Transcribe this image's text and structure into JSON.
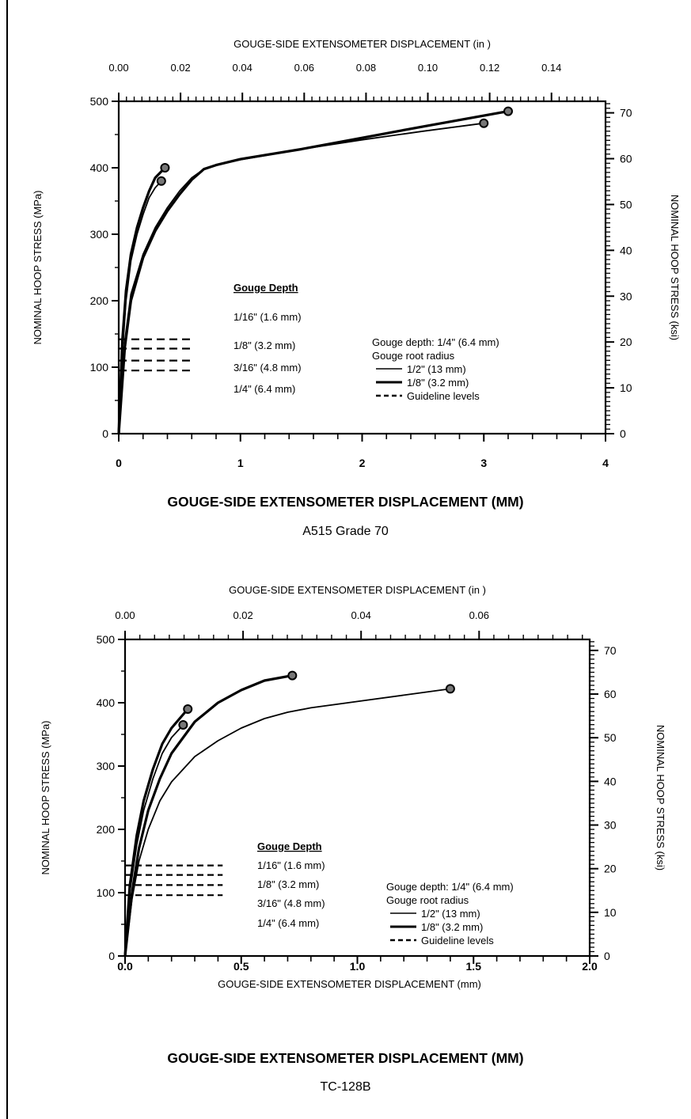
{
  "chart_data": [
    {
      "type": "line",
      "xlabel_top": "GOUGE-SIDE EXTENSOMETER DISPLACEMENT (in )",
      "ylabel_left": "NOMINAL HOOP STRESS (MPa)",
      "ylabel_right": "NOMINAL HOOP STRESS (ksi)",
      "x_ticks": [
        "0",
        "1",
        "2",
        "3",
        "4"
      ],
      "x_top_ticks": [
        "0.00",
        "0.02",
        "0.04",
        "0.06",
        "0.08",
        "0.10",
        "0.12",
        "0.14"
      ],
      "y_ticks": [
        "0",
        "100",
        "200",
        "300",
        "400",
        "500"
      ],
      "y_right_ticks": [
        "0",
        "10",
        "20",
        "30",
        "40",
        "50",
        "60",
        "70"
      ],
      "xlim": [
        0,
        4
      ],
      "ylim": [
        0,
        500
      ],
      "x_top_lim": [
        0,
        0.15748
      ],
      "y_right_lim": [
        0,
        72.52
      ],
      "series": [
        {
          "name": "1/2\" (13 mm)",
          "style": "thin",
          "x": [
            0,
            0.03,
            0.06,
            0.1,
            0.15,
            0.2,
            0.25,
            0.3,
            0.35
          ],
          "y": [
            0,
            120,
            200,
            260,
            300,
            330,
            355,
            370,
            380
          ],
          "end_marker": true
        },
        {
          "name": "1/8\" (3.2 mm)",
          "style": "thick",
          "x": [
            0,
            0.03,
            0.06,
            0.1,
            0.15,
            0.2,
            0.25,
            0.3,
            0.38
          ],
          "y": [
            0,
            140,
            215,
            270,
            310,
            340,
            365,
            385,
            400
          ],
          "end_marker": true
        },
        {
          "name": "1/2\" (13 mm)",
          "style": "thin",
          "x": [
            0,
            0.05,
            0.1,
            0.2,
            0.3,
            0.4,
            0.5,
            0.6,
            0.7,
            0.8,
            1.0,
            1.5,
            2.0,
            2.5,
            3.0
          ],
          "y": [
            0,
            140,
            210,
            270,
            310,
            340,
            365,
            385,
            398,
            404,
            412,
            428,
            442,
            455,
            467
          ],
          "end_marker": true
        },
        {
          "name": "1/8\" (3.2 mm)",
          "style": "thick",
          "x": [
            0,
            0.05,
            0.1,
            0.2,
            0.3,
            0.4,
            0.5,
            0.6,
            0.7,
            0.8,
            1.0,
            1.5,
            2.0,
            2.5,
            3.2
          ],
          "y": [
            0,
            130,
            200,
            265,
            305,
            335,
            360,
            382,
            398,
            404,
            413,
            428,
            445,
            462,
            485
          ],
          "end_marker": true
        }
      ],
      "guideline_levels": [
        142,
        128,
        110,
        95
      ],
      "guideline_xmax": 0.6,
      "gouge_depth_title": "Gouge Depth",
      "gouge_depth_labels": [
        "1/16\" (1.6 mm)",
        "1/8\" (3.2 mm)",
        "3/16\" (4.8 mm)",
        "1/4\" (6.4 mm)"
      ],
      "legend": {
        "line1": "Gouge depth: 1/4\" (6.4 mm)",
        "line2": "Gouge root radius",
        "items": [
          {
            "label": "1/2\" (13 mm)",
            "style": "thin"
          },
          {
            "label": "1/8\" (3.2 mm)",
            "style": "thick"
          },
          {
            "label": "Guideline levels",
            "style": "dashed"
          }
        ]
      }
    },
    {
      "type": "line",
      "xlabel_top": "GOUGE-SIDE EXTENSOMETER DISPLACEMENT (in )",
      "xlabel": "GOUGE-SIDE EXTENSOMETER DISPLACEMENT (mm)",
      "ylabel_left": "NOMINAL HOOP STRESS (MPa)",
      "ylabel_right": "NOMINAL HOOP STRESS (ksi)",
      "x_ticks": [
        "0.0",
        "0.5",
        "1.0",
        "1.5",
        "2.0"
      ],
      "x_top_ticks": [
        "0.00",
        "0.02",
        "0.04",
        "0.06"
      ],
      "y_ticks": [
        "0",
        "100",
        "200",
        "300",
        "400",
        "500"
      ],
      "y_right_ticks": [
        "0",
        "10",
        "20",
        "30",
        "40",
        "50",
        "60",
        "70"
      ],
      "xlim": [
        0,
        2
      ],
      "ylim": [
        0,
        500
      ],
      "x_top_lim": [
        0,
        0.07874
      ],
      "y_right_lim": [
        0,
        72.52
      ],
      "series": [
        {
          "name": "1/2\" (13 mm)",
          "style": "thin",
          "x": [
            0,
            0.02,
            0.05,
            0.08,
            0.12,
            0.16,
            0.2,
            0.25
          ],
          "y": [
            0,
            100,
            175,
            230,
            280,
            320,
            345,
            365
          ],
          "end_marker": true
        },
        {
          "name": "1/8\" (3.2 mm)",
          "style": "thick",
          "x": [
            0,
            0.02,
            0.05,
            0.08,
            0.12,
            0.16,
            0.2,
            0.27
          ],
          "y": [
            0,
            110,
            190,
            245,
            295,
            335,
            360,
            390
          ],
          "end_marker": true
        },
        {
          "name": "1/8\" (3.2 mm)",
          "style": "thick",
          "x": [
            0,
            0.03,
            0.06,
            0.1,
            0.15,
            0.2,
            0.3,
            0.4,
            0.5,
            0.6,
            0.72
          ],
          "y": [
            0,
            100,
            170,
            230,
            280,
            320,
            370,
            400,
            420,
            435,
            443
          ],
          "end_marker": true
        },
        {
          "name": "1/2\" (13 mm)",
          "style": "thin",
          "x": [
            0,
            0.03,
            0.06,
            0.1,
            0.15,
            0.2,
            0.3,
            0.4,
            0.5,
            0.6,
            0.7,
            0.8,
            1.0,
            1.2,
            1.4
          ],
          "y": [
            0,
            90,
            150,
            200,
            245,
            275,
            315,
            340,
            360,
            375,
            385,
            392,
            402,
            412,
            422
          ],
          "end_marker": true
        }
      ],
      "guideline_levels": [
        143,
        128,
        112,
        96
      ],
      "guideline_xmax": 0.42,
      "gouge_depth_title": "Gouge Depth",
      "gouge_depth_labels": [
        "1/16\" (1.6 mm)",
        "1/8\" (3.2 mm)",
        "3/16\" (4.8 mm)",
        "1/4\" (6.4 mm)"
      ],
      "legend": {
        "line1": "Gouge depth: 1/4\" (6.4 mm)",
        "line2": "Gouge root radius",
        "items": [
          {
            "label": "1/2\" (13 mm)",
            "style": "thin"
          },
          {
            "label": "1/8\" (3.2 mm)",
            "style": "thick"
          },
          {
            "label": "Guideline levels",
            "style": "dashed"
          }
        ]
      }
    }
  ],
  "captions": {
    "chart1_title": "GOUGE-SIDE EXTENSOMETER DISPLACEMENT (MM)",
    "chart1_subtitle": "A515 Grade 70",
    "chart2_title": "GOUGE-SIDE EXTENSOMETER DISPLACEMENT (MM)",
    "chart2_subtitle": "TC-128B"
  }
}
